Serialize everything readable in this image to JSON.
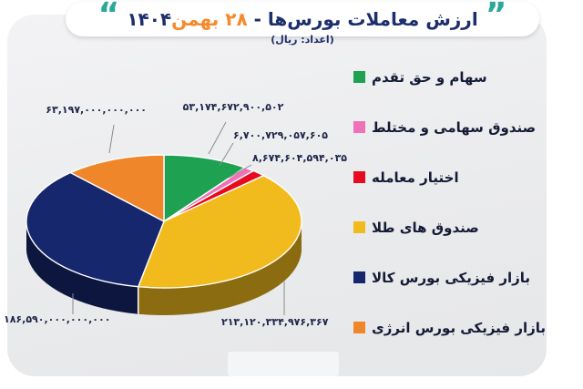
{
  "header": {
    "quote_open": "“",
    "quote_close": "”",
    "title_main": "ارزش معاملات بورس‌ها - ",
    "title_date": "۲۸ بهمن",
    "title_year": "۱۴۰۴",
    "subtitle": "(اعداد: ریال)"
  },
  "colors": {
    "title_navy": "#1c2e6b",
    "title_orange": "#f6892c",
    "quote_teal": "#2ba89a",
    "card_bg": "#eaebed",
    "label_text": "#20264a",
    "legend_text": "#151b35",
    "connector_gray": "#8b8b8b"
  },
  "chart_data": {
    "type": "pie",
    "title": "ارزش معاملات بورس‌ها - ۲۸ بهمن ۱۴۰۴",
    "unit_note": "(اعداد: ریال)",
    "legend_position": "right",
    "style": "3d-pie",
    "start_angle_deg": 0,
    "direction": "clockwise",
    "slices": [
      {
        "label": "سهام و حق تقدم",
        "value": 53174672900502,
        "display": "۵۳,۱۷۴,۶۷۲,۹۰۰,۵۰۲",
        "color": "#1fa152"
      },
      {
        "label": "صندوق سهامی و مختلط",
        "value": 6700729057605,
        "display": "۶,۷۰۰,۷۲۹,۰۵۷,۶۰۵",
        "color": "#ee72b8"
      },
      {
        "label": "اختیار معامله",
        "value": 8674604594035,
        "display": "۸,۶۷۴,۶۰۴,۵۹۴,۰۳۵",
        "color": "#e60b1e"
      },
      {
        "label": "صندوق های طلا",
        "value": 213120334976367,
        "display": "۲۱۳,۱۲۰,۳۳۴,۹۷۶,۳۶۷",
        "color": "#f2bb1d"
      },
      {
        "label": "بازار فیزیکی بورس کالا",
        "value": 186590000000000,
        "display": "۱۸۶,۵۹۰,۰۰۰,۰۰۰,۰۰۰",
        "color": "#16276d"
      },
      {
        "label": "بازار فیزیکی بورس انرژی",
        "value": 63197000000000,
        "display": "۶۳,۱۹۷,۰۰۰,۰۰۰,۰۰۰",
        "color": "#f0862a"
      }
    ]
  }
}
